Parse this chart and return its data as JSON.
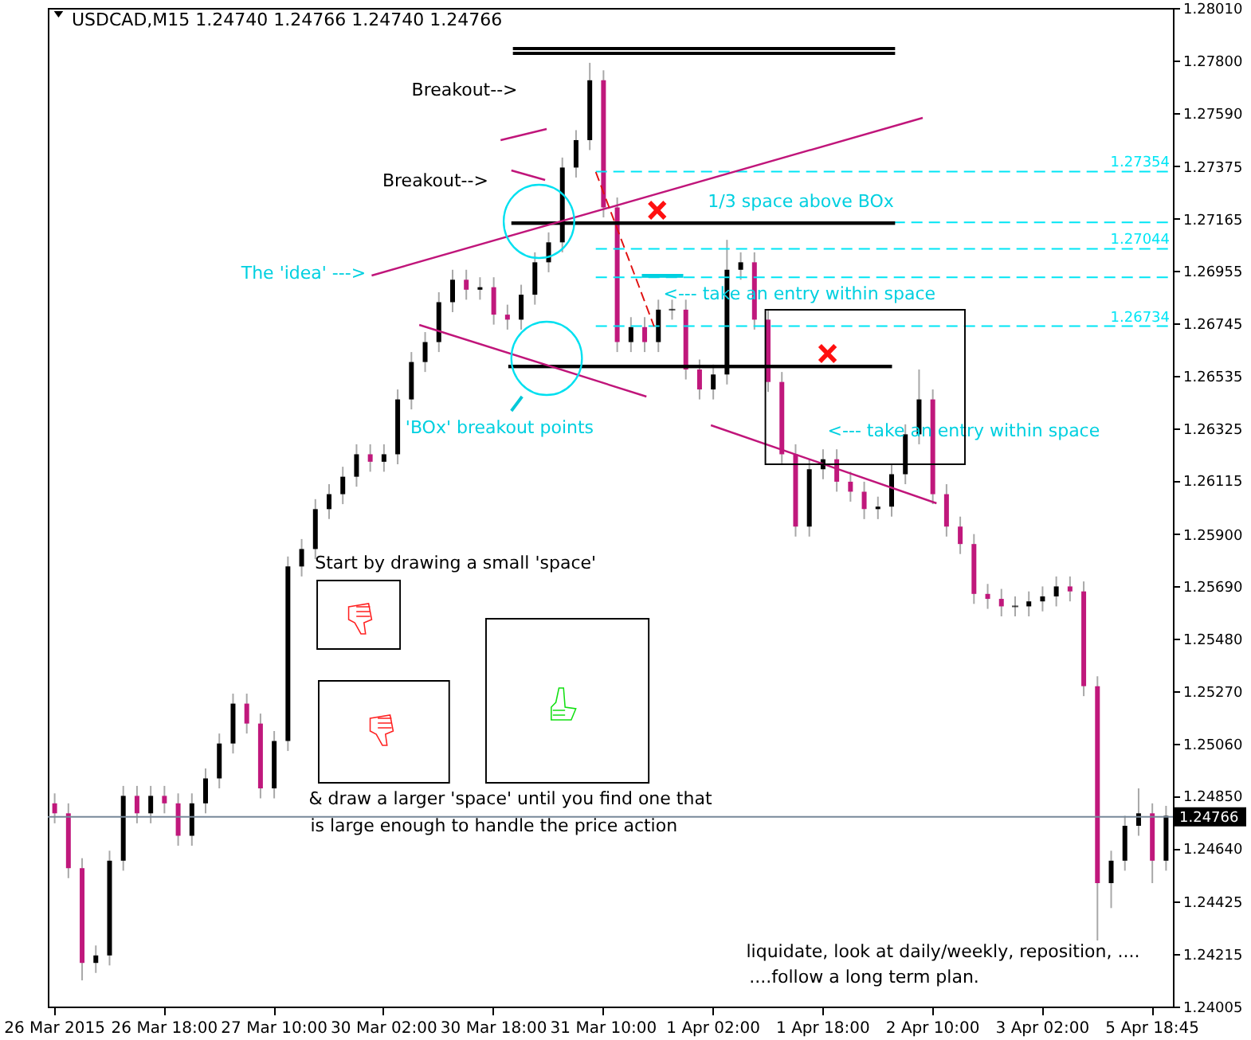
{
  "chart_data": {
    "type": "candlestick",
    "title": "USDCAD,M15  1.24740 1.24766 1.24740 1.24766",
    "categories": [
      "26 Mar 2015",
      null,
      null,
      null,
      null,
      null,
      null,
      null,
      "26 Mar 18:00",
      null,
      null,
      null,
      null,
      null,
      null,
      null,
      "27 Mar 10:00",
      null,
      null,
      null,
      null,
      null,
      null,
      null,
      "30 Mar 02:00",
      null,
      null,
      null,
      null,
      null,
      null,
      null,
      "30 Mar 18:00",
      null,
      null,
      null,
      null,
      null,
      null,
      null,
      "31 Mar 10:00",
      null,
      null,
      null,
      null,
      null,
      null,
      null,
      "1 Apr 02:00",
      null,
      null,
      null,
      null,
      null,
      null,
      null,
      "1 Apr 18:00",
      null,
      null,
      null,
      null,
      null,
      null,
      null,
      "2 Apr 10:00",
      null,
      null,
      null,
      null,
      null,
      null,
      null,
      "3 Apr 02:00",
      null,
      null,
      null,
      null,
      null,
      null,
      null,
      "5 Apr 18:45",
      null
    ],
    "ohlc": [
      [
        1.2482,
        1.2486,
        1.2474,
        1.2478
      ],
      [
        1.2478,
        1.2482,
        1.2452,
        1.2456
      ],
      [
        1.2456,
        1.246,
        1.2411,
        1.2418
      ],
      [
        1.2418,
        1.2425,
        1.2414,
        1.2421
      ],
      [
        1.2421,
        1.2463,
        1.2417,
        1.2459
      ],
      [
        1.2459,
        1.2489,
        1.2455,
        1.2485
      ],
      [
        1.2485,
        1.2489,
        1.2474,
        1.2478
      ],
      [
        1.2478,
        1.2489,
        1.2474,
        1.2485
      ],
      [
        1.2485,
        1.2489,
        1.2478,
        1.2482
      ],
      [
        1.2482,
        1.2486,
        1.2465,
        1.2469
      ],
      [
        1.2469,
        1.2486,
        1.2465,
        1.2482
      ],
      [
        1.2482,
        1.2496,
        1.2478,
        1.2492
      ],
      [
        1.2492,
        1.251,
        1.2488,
        1.2506
      ],
      [
        1.2506,
        1.2526,
        1.2502,
        1.2522
      ],
      [
        1.2522,
        1.2526,
        1.251,
        1.2514
      ],
      [
        1.2514,
        1.2518,
        1.2484,
        1.2488
      ],
      [
        1.2488,
        1.2511,
        1.2484,
        1.2507
      ],
      [
        1.2507,
        1.2581,
        1.2503,
        1.2577
      ],
      [
        1.2577,
        1.2588,
        1.2573,
        1.2584
      ],
      [
        1.2584,
        1.2604,
        1.258,
        1.26
      ],
      [
        1.26,
        1.261,
        1.2596,
        1.2606
      ],
      [
        1.2606,
        1.2617,
        1.2602,
        1.2613
      ],
      [
        1.2613,
        1.2626,
        1.2609,
        1.2622
      ],
      [
        1.2622,
        1.2626,
        1.2615,
        1.2619
      ],
      [
        1.2619,
        1.2626,
        1.2615,
        1.2622
      ],
      [
        1.2622,
        1.2648,
        1.2618,
        1.2644
      ],
      [
        1.2644,
        1.2663,
        1.264,
        1.2659
      ],
      [
        1.2659,
        1.2671,
        1.2655,
        1.2667
      ],
      [
        1.2667,
        1.2687,
        1.2663,
        1.2683
      ],
      [
        1.2683,
        1.2696,
        1.2679,
        1.2692
      ],
      [
        1.2692,
        1.2696,
        1.2684,
        1.2688
      ],
      [
        1.2688,
        1.2693,
        1.2684,
        1.2689
      ],
      [
        1.2689,
        1.2693,
        1.2674,
        1.2678
      ],
      [
        1.2678,
        1.2682,
        1.2672,
        1.2676
      ],
      [
        1.2676,
        1.269,
        1.2672,
        1.2686
      ],
      [
        1.2686,
        1.2703,
        1.2682,
        1.2699
      ],
      [
        1.2699,
        1.2711,
        1.2695,
        1.2707
      ],
      [
        1.2707,
        1.2741,
        1.2703,
        1.2737
      ],
      [
        1.2737,
        1.2752,
        1.2733,
        1.2748
      ],
      [
        1.2748,
        1.2779,
        1.2744,
        1.2772
      ],
      [
        1.2772,
        1.2776,
        1.2717,
        1.2721
      ],
      [
        1.2721,
        1.2725,
        1.2663,
        1.2667
      ],
      [
        1.2667,
        1.2677,
        1.2663,
        1.2673
      ],
      [
        1.2673,
        1.2677,
        1.2663,
        1.2667
      ],
      [
        1.2667,
        1.2684,
        1.2663,
        1.268
      ],
      [
        1.268,
        1.2684,
        1.2676,
        1.268
      ],
      [
        1.268,
        1.2684,
        1.2652,
        1.2656
      ],
      [
        1.2656,
        1.266,
        1.2644,
        1.2648
      ],
      [
        1.2648,
        1.2658,
        1.2644,
        1.2654
      ],
      [
        1.2654,
        1.2708,
        1.265,
        1.2696
      ],
      [
        1.2696,
        1.2703,
        1.2692,
        1.2699
      ],
      [
        1.2699,
        1.2703,
        1.2672,
        1.2676
      ],
      [
        1.2676,
        1.268,
        1.2647,
        1.2651
      ],
      [
        1.2651,
        1.2655,
        1.2618,
        1.2622
      ],
      [
        1.2622,
        1.2626,
        1.2589,
        1.2593
      ],
      [
        1.2593,
        1.262,
        1.2589,
        1.2616
      ],
      [
        1.2616,
        1.2624,
        1.2612,
        1.262
      ],
      [
        1.262,
        1.2624,
        1.2607,
        1.2611
      ],
      [
        1.2611,
        1.2615,
        1.2603,
        1.2607
      ],
      [
        1.2607,
        1.2611,
        1.2596,
        1.26
      ],
      [
        1.26,
        1.2605,
        1.2596,
        1.2601
      ],
      [
        1.2601,
        1.2618,
        1.2597,
        1.2614
      ],
      [
        1.2614,
        1.2634,
        1.261,
        1.263
      ],
      [
        1.263,
        1.2656,
        1.2626,
        1.2644
      ],
      [
        1.2644,
        1.2648,
        1.2602,
        1.2606
      ],
      [
        1.2606,
        1.261,
        1.2589,
        1.2593
      ],
      [
        1.2593,
        1.2597,
        1.2582,
        1.2586
      ],
      [
        1.2586,
        1.259,
        1.2562,
        1.2566
      ],
      [
        1.2566,
        1.257,
        1.256,
        1.2564
      ],
      [
        1.2564,
        1.2568,
        1.2557,
        1.2561
      ],
      [
        1.2561,
        1.2565,
        1.2557,
        1.2561
      ],
      [
        1.2561,
        1.2567,
        1.2557,
        1.2563
      ],
      [
        1.2563,
        1.2569,
        1.2559,
        1.2565
      ],
      [
        1.2565,
        1.2573,
        1.2561,
        1.2569
      ],
      [
        1.2569,
        1.2573,
        1.2563,
        1.2567
      ],
      [
        1.2567,
        1.2571,
        1.2525,
        1.2529
      ],
      [
        1.2529,
        1.2533,
        1.2427,
        1.245
      ],
      [
        1.245,
        1.2463,
        1.244,
        1.2459
      ],
      [
        1.2459,
        1.2477,
        1.2455,
        1.2473
      ],
      [
        1.2473,
        1.2488,
        1.2469,
        1.2478
      ],
      [
        1.2478,
        1.2482,
        1.245,
        1.2459
      ],
      [
        1.2459,
        1.2481,
        1.2455,
        1.2477
      ]
    ],
    "ylim": [
      1.24005,
      1.2801
    ],
    "yticks": [
      {
        "value": 1.2801,
        "label": "1.28010"
      },
      {
        "value": 1.278,
        "label": "1.27800"
      },
      {
        "value": 1.2759,
        "label": "1.27590"
      },
      {
        "value": 1.27375,
        "label": "1.27375"
      },
      {
        "value": 1.27165,
        "label": "1.27165"
      },
      {
        "value": 1.26955,
        "label": "1.26955"
      },
      {
        "value": 1.26745,
        "label": "1.26745"
      },
      {
        "value": 1.26535,
        "label": "1.26535"
      },
      {
        "value": 1.26325,
        "label": "1.26325"
      },
      {
        "value": 1.26115,
        "label": "1.26115"
      },
      {
        "value": 1.259,
        "label": "1.25900"
      },
      {
        "value": 1.2569,
        "label": "1.25690"
      },
      {
        "value": 1.2548,
        "label": "1.25480"
      },
      {
        "value": 1.2527,
        "label": "1.25270"
      },
      {
        "value": 1.2506,
        "label": "1.25060"
      },
      {
        "value": 1.2485,
        "label": "1.24850"
      },
      {
        "value": 1.2464,
        "label": "1.24640"
      },
      {
        "value": 1.24425,
        "label": "1.24425"
      },
      {
        "value": 1.24215,
        "label": "1.24215"
      },
      {
        "value": 1.24005,
        "label": "1.24005"
      }
    ],
    "ref_lines": [
      {
        "axis": "y",
        "value": 1.27354,
        "label": "1.27354",
        "color": "#00e5f5",
        "line_style": "dashed"
      },
      {
        "axis": "y",
        "value": 1.2715,
        "label": null,
        "color": "#00e5f5",
        "line_style": "dashed"
      },
      {
        "axis": "y",
        "value": 1.27044,
        "label": "1.27044",
        "color": "#00e5f5",
        "line_style": "dashed"
      },
      {
        "axis": "y",
        "value": 1.2693,
        "label": null,
        "color": "#00e5f5",
        "line_style": "dashed"
      },
      {
        "axis": "y",
        "value": 1.26734,
        "label": "1.26734",
        "color": "#00e5f5",
        "line_style": "dashed"
      },
      {
        "axis": "y",
        "value": 1.24766,
        "label": "1.24766",
        "color": "#778899",
        "line_style": "solid"
      }
    ],
    "annotations": [
      "Breakout-->",
      "Breakout-->",
      "The 'idea' --->",
      "'BOx' breakout points",
      "1/3 space above BOx",
      "<--- take an entry within space",
      "<--- take an entry within space",
      "Start by drawing a small 'space'",
      "& draw a larger 'space' until you find one that",
      "is large enough to handle the price action",
      "liquidate, look at daily/weekly, reposition, ....",
      "....follow a long term plan."
    ]
  }
}
